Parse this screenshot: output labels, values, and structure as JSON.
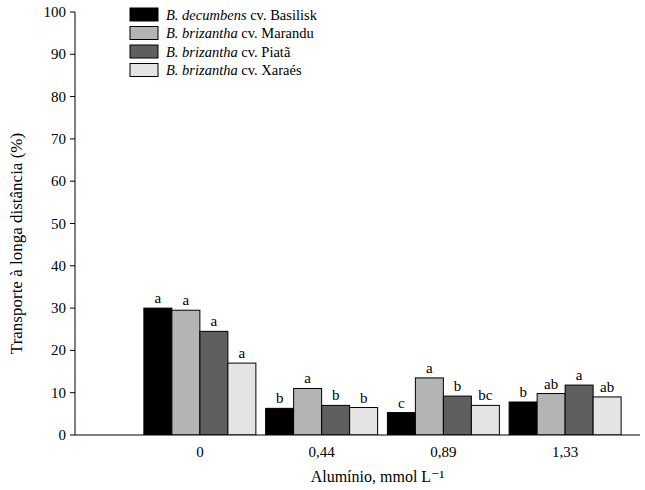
{
  "chart_data": {
    "type": "bar",
    "x_label": "Alumínio, mmol L⁻¹",
    "y_label": "Transporte à longa distância (%)",
    "categories": [
      "0",
      "0,44",
      "0,89",
      "1,33"
    ],
    "series": [
      {
        "name": "B. decumbens cv. Basilisk",
        "color": "#000000",
        "values": [
          30,
          6.3,
          5.3,
          7.8
        ],
        "letters": [
          "a",
          "b",
          "c",
          "b"
        ]
      },
      {
        "name": "B. brizantha cv. Marandu",
        "color": "#b4b4b4",
        "values": [
          29.5,
          11,
          13.5,
          9.8
        ],
        "letters": [
          "a",
          "a",
          "a",
          "ab"
        ]
      },
      {
        "name": "B. brizantha cv. Piatã",
        "color": "#5f5f5f",
        "values": [
          24.5,
          7,
          9.2,
          11.8
        ],
        "letters": [
          "a",
          "b",
          "b",
          "a"
        ]
      },
      {
        "name": "B. brizantha cv. Xaraés",
        "color": "#e4e4e4",
        "values": [
          17,
          6.5,
          7,
          9
        ],
        "letters": [
          "a",
          "b",
          "bc",
          "ab"
        ]
      }
    ],
    "ylim": [
      0,
      100
    ],
    "yticks": [
      0,
      10,
      20,
      30,
      40,
      50,
      60,
      70,
      80,
      90,
      100
    ],
    "legend": "upper-left",
    "grid": false
  }
}
